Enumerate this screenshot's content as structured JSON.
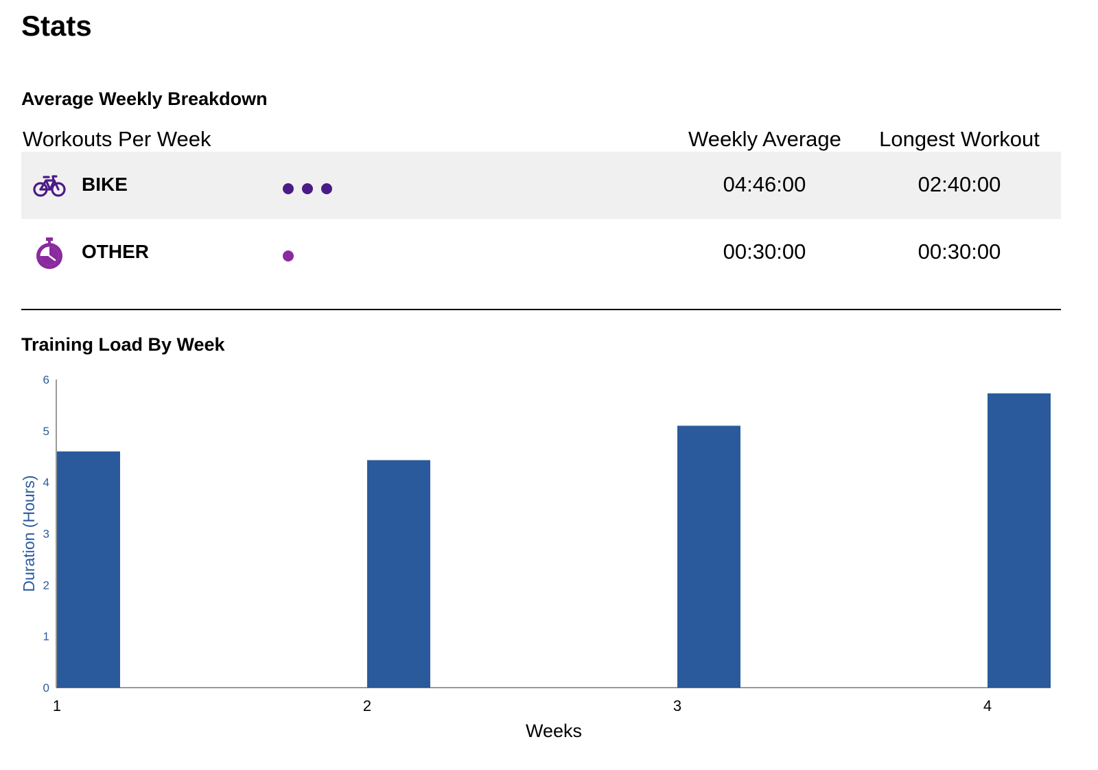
{
  "page": {
    "title": "Stats"
  },
  "breakdown": {
    "title": "Average Weekly Breakdown",
    "columns": {
      "workouts": "Workouts Per Week",
      "weekly_average": "Weekly Average",
      "longest_workout": "Longest Workout"
    },
    "rows": [
      {
        "sport": "BIKE",
        "icon": "bike-icon",
        "workouts_per_week": 3,
        "dot_color": "#4b1a86",
        "weekly_average": "04:46:00",
        "longest_workout": "02:40:00"
      },
      {
        "sport": "OTHER",
        "icon": "stopwatch-icon",
        "workouts_per_week": 1,
        "dot_color": "#8a2a9e",
        "weekly_average": "00:30:00",
        "longest_workout": "00:30:00"
      }
    ]
  },
  "training_load": {
    "title": "Training Load By Week"
  },
  "colors": {
    "bar": "#2b5a9c",
    "axis_text": "#2b5a9c",
    "bike_icon": "#4b1a86",
    "other_icon": "#8a2a9e"
  },
  "chart_data": {
    "type": "bar",
    "categories": [
      "1",
      "2",
      "3",
      "4"
    ],
    "values": [
      4.6,
      4.43,
      5.1,
      5.73
    ],
    "xlabel": "Weeks",
    "ylabel": "Duration (Hours)",
    "ylim": [
      0,
      6
    ],
    "yticks": [
      0,
      1,
      2,
      3,
      4,
      5,
      6
    ],
    "grid": false,
    "legend": "none"
  }
}
